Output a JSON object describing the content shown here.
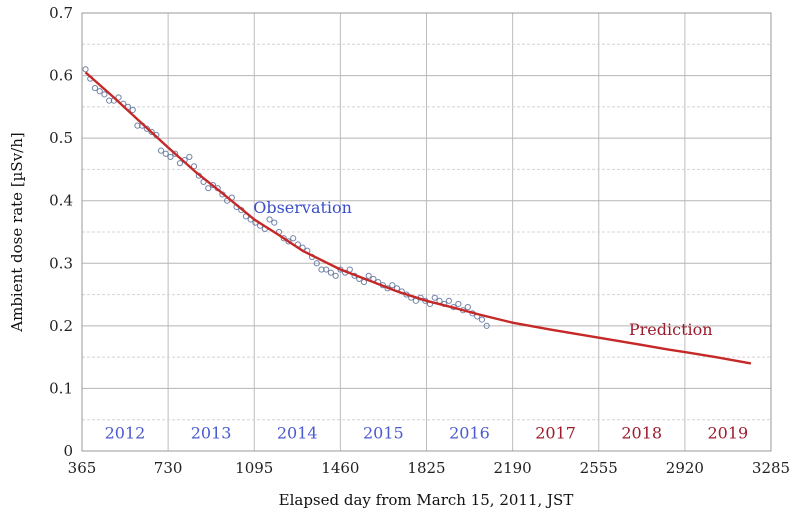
{
  "chart_data": {
    "type": "scatter",
    "xlabel": "Elapsed day from March 15, 2011, JST",
    "ylabel": "Ambient dose rate [µSv/h]",
    "xlim": [
      365,
      3285
    ],
    "ylim": [
      0,
      0.7
    ],
    "x_ticks": [
      365,
      730,
      1095,
      1460,
      1825,
      2190,
      2555,
      2920,
      3285
    ],
    "y_ticks": [
      0,
      0.1,
      0.2,
      0.3,
      0.4,
      0.5,
      0.6,
      0.7
    ],
    "x_tick_labels": [
      "365",
      "730",
      "1095",
      "1460",
      "1825",
      "2190",
      "2555",
      "2920",
      "3285"
    ],
    "y_tick_labels": [
      "0",
      "0.1",
      "0.2",
      "0.3",
      "0.4",
      "0.5",
      "0.6",
      "0.7"
    ],
    "grid": true,
    "years": [
      {
        "label": "2012",
        "x": 547,
        "kind": "observation"
      },
      {
        "label": "2013",
        "x": 912,
        "kind": "observation"
      },
      {
        "label": "2014",
        "x": 1277,
        "kind": "observation"
      },
      {
        "label": "2015",
        "x": 1642,
        "kind": "observation"
      },
      {
        "label": "2016",
        "x": 2007,
        "kind": "observation"
      },
      {
        "label": "2017",
        "x": 2372,
        "kind": "prediction"
      },
      {
        "label": "2018",
        "x": 2737,
        "kind": "prediction"
      },
      {
        "label": "2019",
        "x": 3102,
        "kind": "prediction"
      }
    ],
    "annotations": [
      {
        "text": "Observation",
        "x": 1300,
        "y": 0.38,
        "color": "#3a4fc8"
      },
      {
        "text": "Prediction",
        "x": 2860,
        "y": 0.185,
        "color": "#9b1c2c"
      }
    ],
    "series": [
      {
        "kind": "observation",
        "color": "#5a6f9a",
        "points": [
          [
            380,
            0.61
          ],
          [
            400,
            0.595
          ],
          [
            420,
            0.58
          ],
          [
            440,
            0.575
          ],
          [
            460,
            0.57
          ],
          [
            480,
            0.56
          ],
          [
            500,
            0.56
          ],
          [
            520,
            0.565
          ],
          [
            540,
            0.555
          ],
          [
            560,
            0.55
          ],
          [
            580,
            0.545
          ],
          [
            600,
            0.52
          ],
          [
            620,
            0.52
          ],
          [
            640,
            0.515
          ],
          [
            660,
            0.51
          ],
          [
            680,
            0.505
          ],
          [
            700,
            0.48
          ],
          [
            720,
            0.475
          ],
          [
            740,
            0.47
          ],
          [
            760,
            0.475
          ],
          [
            780,
            0.46
          ],
          [
            800,
            0.465
          ],
          [
            820,
            0.47
          ],
          [
            840,
            0.455
          ],
          [
            860,
            0.44
          ],
          [
            880,
            0.43
          ],
          [
            900,
            0.42
          ],
          [
            920,
            0.425
          ],
          [
            940,
            0.42
          ],
          [
            960,
            0.41
          ],
          [
            980,
            0.4
          ],
          [
            1000,
            0.405
          ],
          [
            1020,
            0.39
          ],
          [
            1040,
            0.385
          ],
          [
            1060,
            0.375
          ],
          [
            1080,
            0.37
          ],
          [
            1100,
            0.365
          ],
          [
            1120,
            0.36
          ],
          [
            1140,
            0.355
          ],
          [
            1160,
            0.37
          ],
          [
            1180,
            0.365
          ],
          [
            1200,
            0.35
          ],
          [
            1220,
            0.34
          ],
          [
            1240,
            0.335
          ],
          [
            1260,
            0.34
          ],
          [
            1280,
            0.33
          ],
          [
            1300,
            0.325
          ],
          [
            1320,
            0.32
          ],
          [
            1340,
            0.31
          ],
          [
            1360,
            0.3
          ],
          [
            1380,
            0.29
          ],
          [
            1400,
            0.29
          ],
          [
            1420,
            0.285
          ],
          [
            1440,
            0.28
          ],
          [
            1460,
            0.29
          ],
          [
            1480,
            0.285
          ],
          [
            1500,
            0.29
          ],
          [
            1520,
            0.28
          ],
          [
            1540,
            0.275
          ],
          [
            1560,
            0.27
          ],
          [
            1580,
            0.28
          ],
          [
            1600,
            0.275
          ],
          [
            1620,
            0.27
          ],
          [
            1640,
            0.265
          ],
          [
            1660,
            0.26
          ],
          [
            1680,
            0.265
          ],
          [
            1700,
            0.26
          ],
          [
            1720,
            0.255
          ],
          [
            1740,
            0.25
          ],
          [
            1760,
            0.245
          ],
          [
            1780,
            0.24
          ],
          [
            1800,
            0.245
          ],
          [
            1820,
            0.24
          ],
          [
            1840,
            0.235
          ],
          [
            1860,
            0.245
          ],
          [
            1880,
            0.24
          ],
          [
            1900,
            0.235
          ],
          [
            1920,
            0.24
          ],
          [
            1940,
            0.23
          ],
          [
            1960,
            0.235
          ],
          [
            1980,
            0.225
          ],
          [
            2000,
            0.23
          ],
          [
            2020,
            0.22
          ],
          [
            2040,
            0.215
          ],
          [
            2060,
            0.21
          ],
          [
            2080,
            0.2
          ]
        ]
      },
      {
        "kind": "fit",
        "color": "#c62828",
        "curve": [
          [
            380,
            0.605
          ],
          [
            500,
            0.565
          ],
          [
            600,
            0.53
          ],
          [
            730,
            0.485
          ],
          [
            850,
            0.445
          ],
          [
            950,
            0.415
          ],
          [
            1095,
            0.37
          ],
          [
            1200,
            0.345
          ],
          [
            1300,
            0.32
          ],
          [
            1460,
            0.29
          ],
          [
            1600,
            0.27
          ],
          [
            1700,
            0.255
          ],
          [
            1825,
            0.24
          ],
          [
            1950,
            0.228
          ],
          [
            2050,
            0.218
          ],
          [
            2190,
            0.205
          ],
          [
            2350,
            0.194
          ],
          [
            2555,
            0.181
          ],
          [
            2700,
            0.172
          ],
          [
            2850,
            0.162
          ],
          [
            2920,
            0.158
          ],
          [
            3050,
            0.15
          ],
          [
            3200,
            0.14
          ]
        ]
      }
    ]
  }
}
